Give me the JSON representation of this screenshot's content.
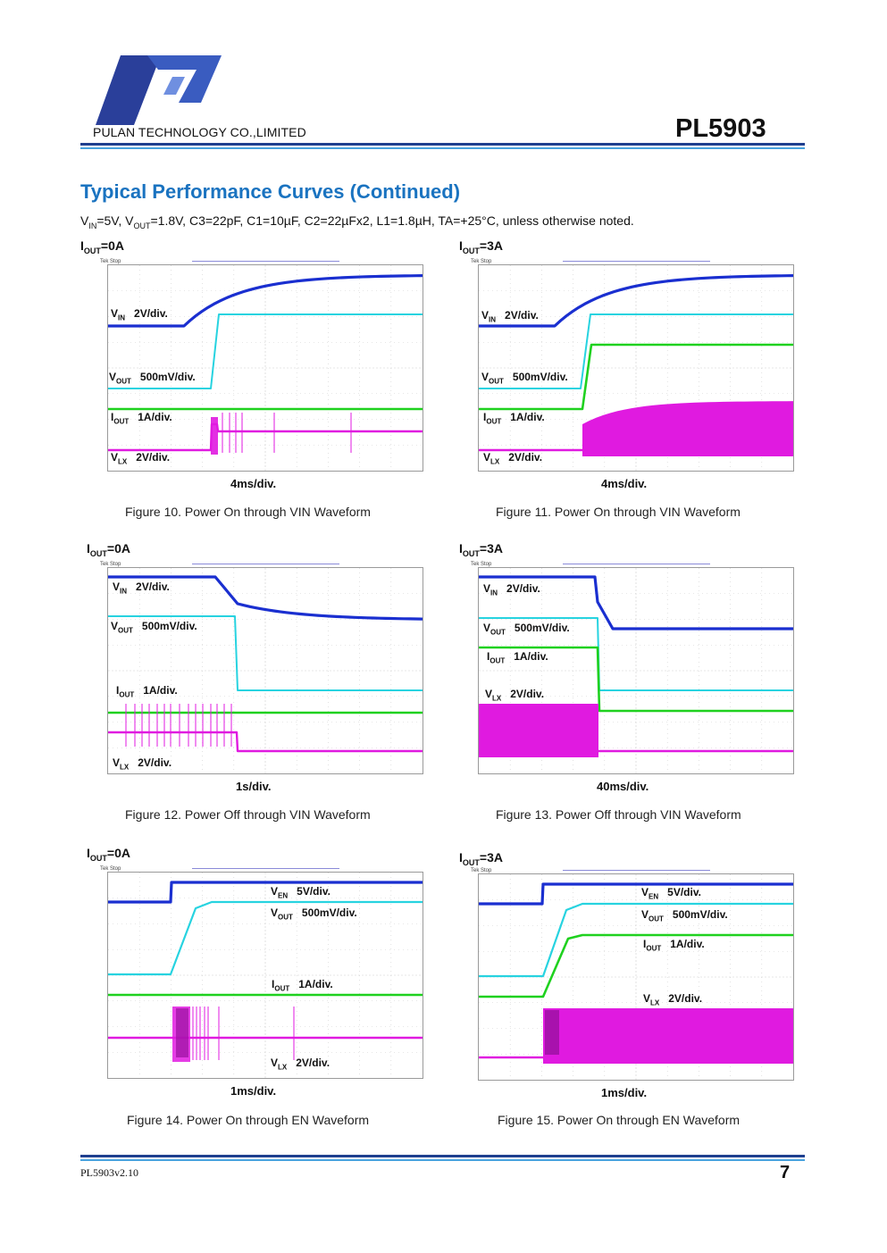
{
  "header": {
    "company": "PULAN TECHNOLOGY CO.,LIMITED",
    "part_number": "PL5903",
    "logo_icon": "pulan-logo-icon"
  },
  "section_title": "Typical Performance Curves (Continued)",
  "conditions": {
    "vin_label": "V",
    "vin_sub": "IN",
    "vin_val": "=5V, ",
    "vout_label": "V",
    "vout_sub": "OUT",
    "vout_val": "=1.8V, C3=22pF, C1=10µF, C2=22µFx2, L1=1.8µH, TA=+25°C, unless otherwise noted."
  },
  "scope_status": "Tek Stop",
  "figures": [
    {
      "iout": "=0A",
      "labels": [
        {
          "name": "V",
          "sub": "IN",
          "scale": "2V/div."
        },
        {
          "name": "V",
          "sub": "OUT",
          "scale": "500mV/div."
        },
        {
          "name": "I",
          "sub": "OUT",
          "scale": "1A/div."
        },
        {
          "name": "V",
          "sub": "LX",
          "scale": "2V/div."
        }
      ],
      "timebase": "4ms/div.",
      "caption": "Figure 10. Power On through VIN Waveform"
    },
    {
      "iout": "=3A",
      "labels": [
        {
          "name": "V",
          "sub": "IN",
          "scale": "2V/div."
        },
        {
          "name": "V",
          "sub": "OUT",
          "scale": "500mV/div."
        },
        {
          "name": "I",
          "sub": "OUT",
          "scale": "1A/div."
        },
        {
          "name": "V",
          "sub": "LX",
          "scale": "2V/div."
        }
      ],
      "timebase": "4ms/div.",
      "caption": "Figure 11. Power On through VIN Waveform"
    },
    {
      "iout": "=0A",
      "labels": [
        {
          "name": "V",
          "sub": "IN",
          "scale": "2V/div."
        },
        {
          "name": "V",
          "sub": "OUT",
          "scale": "500mV/div."
        },
        {
          "name": "I",
          "sub": "OUT",
          "scale": "1A/div."
        },
        {
          "name": "V",
          "sub": "LX",
          "scale": "2V/div."
        }
      ],
      "timebase": "1s/div.",
      "caption": "Figure 12. Power Off through VIN Waveform"
    },
    {
      "iout": "=3A",
      "labels": [
        {
          "name": "V",
          "sub": "IN",
          "scale": "2V/div."
        },
        {
          "name": "V",
          "sub": "OUT",
          "scale": "500mV/div."
        },
        {
          "name": "I",
          "sub": "OUT",
          "scale": "1A/div."
        },
        {
          "name": "V",
          "sub": "LX",
          "scale": "2V/div."
        }
      ],
      "timebase": "40ms/div.",
      "caption": "Figure 13. Power Off through VIN Waveform"
    },
    {
      "iout": "=0A",
      "labels": [
        {
          "name": "V",
          "sub": "EN",
          "scale": "5V/div."
        },
        {
          "name": "V",
          "sub": "OUT",
          "scale": "500mV/div."
        },
        {
          "name": "I",
          "sub": "OUT",
          "scale": "1A/div."
        },
        {
          "name": "V",
          "sub": "LX",
          "scale": "2V/div."
        }
      ],
      "timebase": "1ms/div.",
      "caption": "Figure 14. Power On through EN Waveform"
    },
    {
      "iout": "=3A",
      "labels": [
        {
          "name": "V",
          "sub": "EN",
          "scale": "5V/div."
        },
        {
          "name": "V",
          "sub": "OUT",
          "scale": "500mV/div."
        },
        {
          "name": "I",
          "sub": "OUT",
          "scale": "1A/div."
        },
        {
          "name": "V",
          "sub": "LX",
          "scale": "2V/div."
        }
      ],
      "timebase": "1ms/div.",
      "caption": "Figure 15. Power On through EN Waveform"
    }
  ],
  "trace_colors": {
    "ch1": "#1a2fd0",
    "ch2": "#27d3e0",
    "ch3": "#1fd11f",
    "ch4": "#e01ae0"
  },
  "footer": {
    "doc_version": "PL5903v2.10",
    "page_number": "7"
  }
}
